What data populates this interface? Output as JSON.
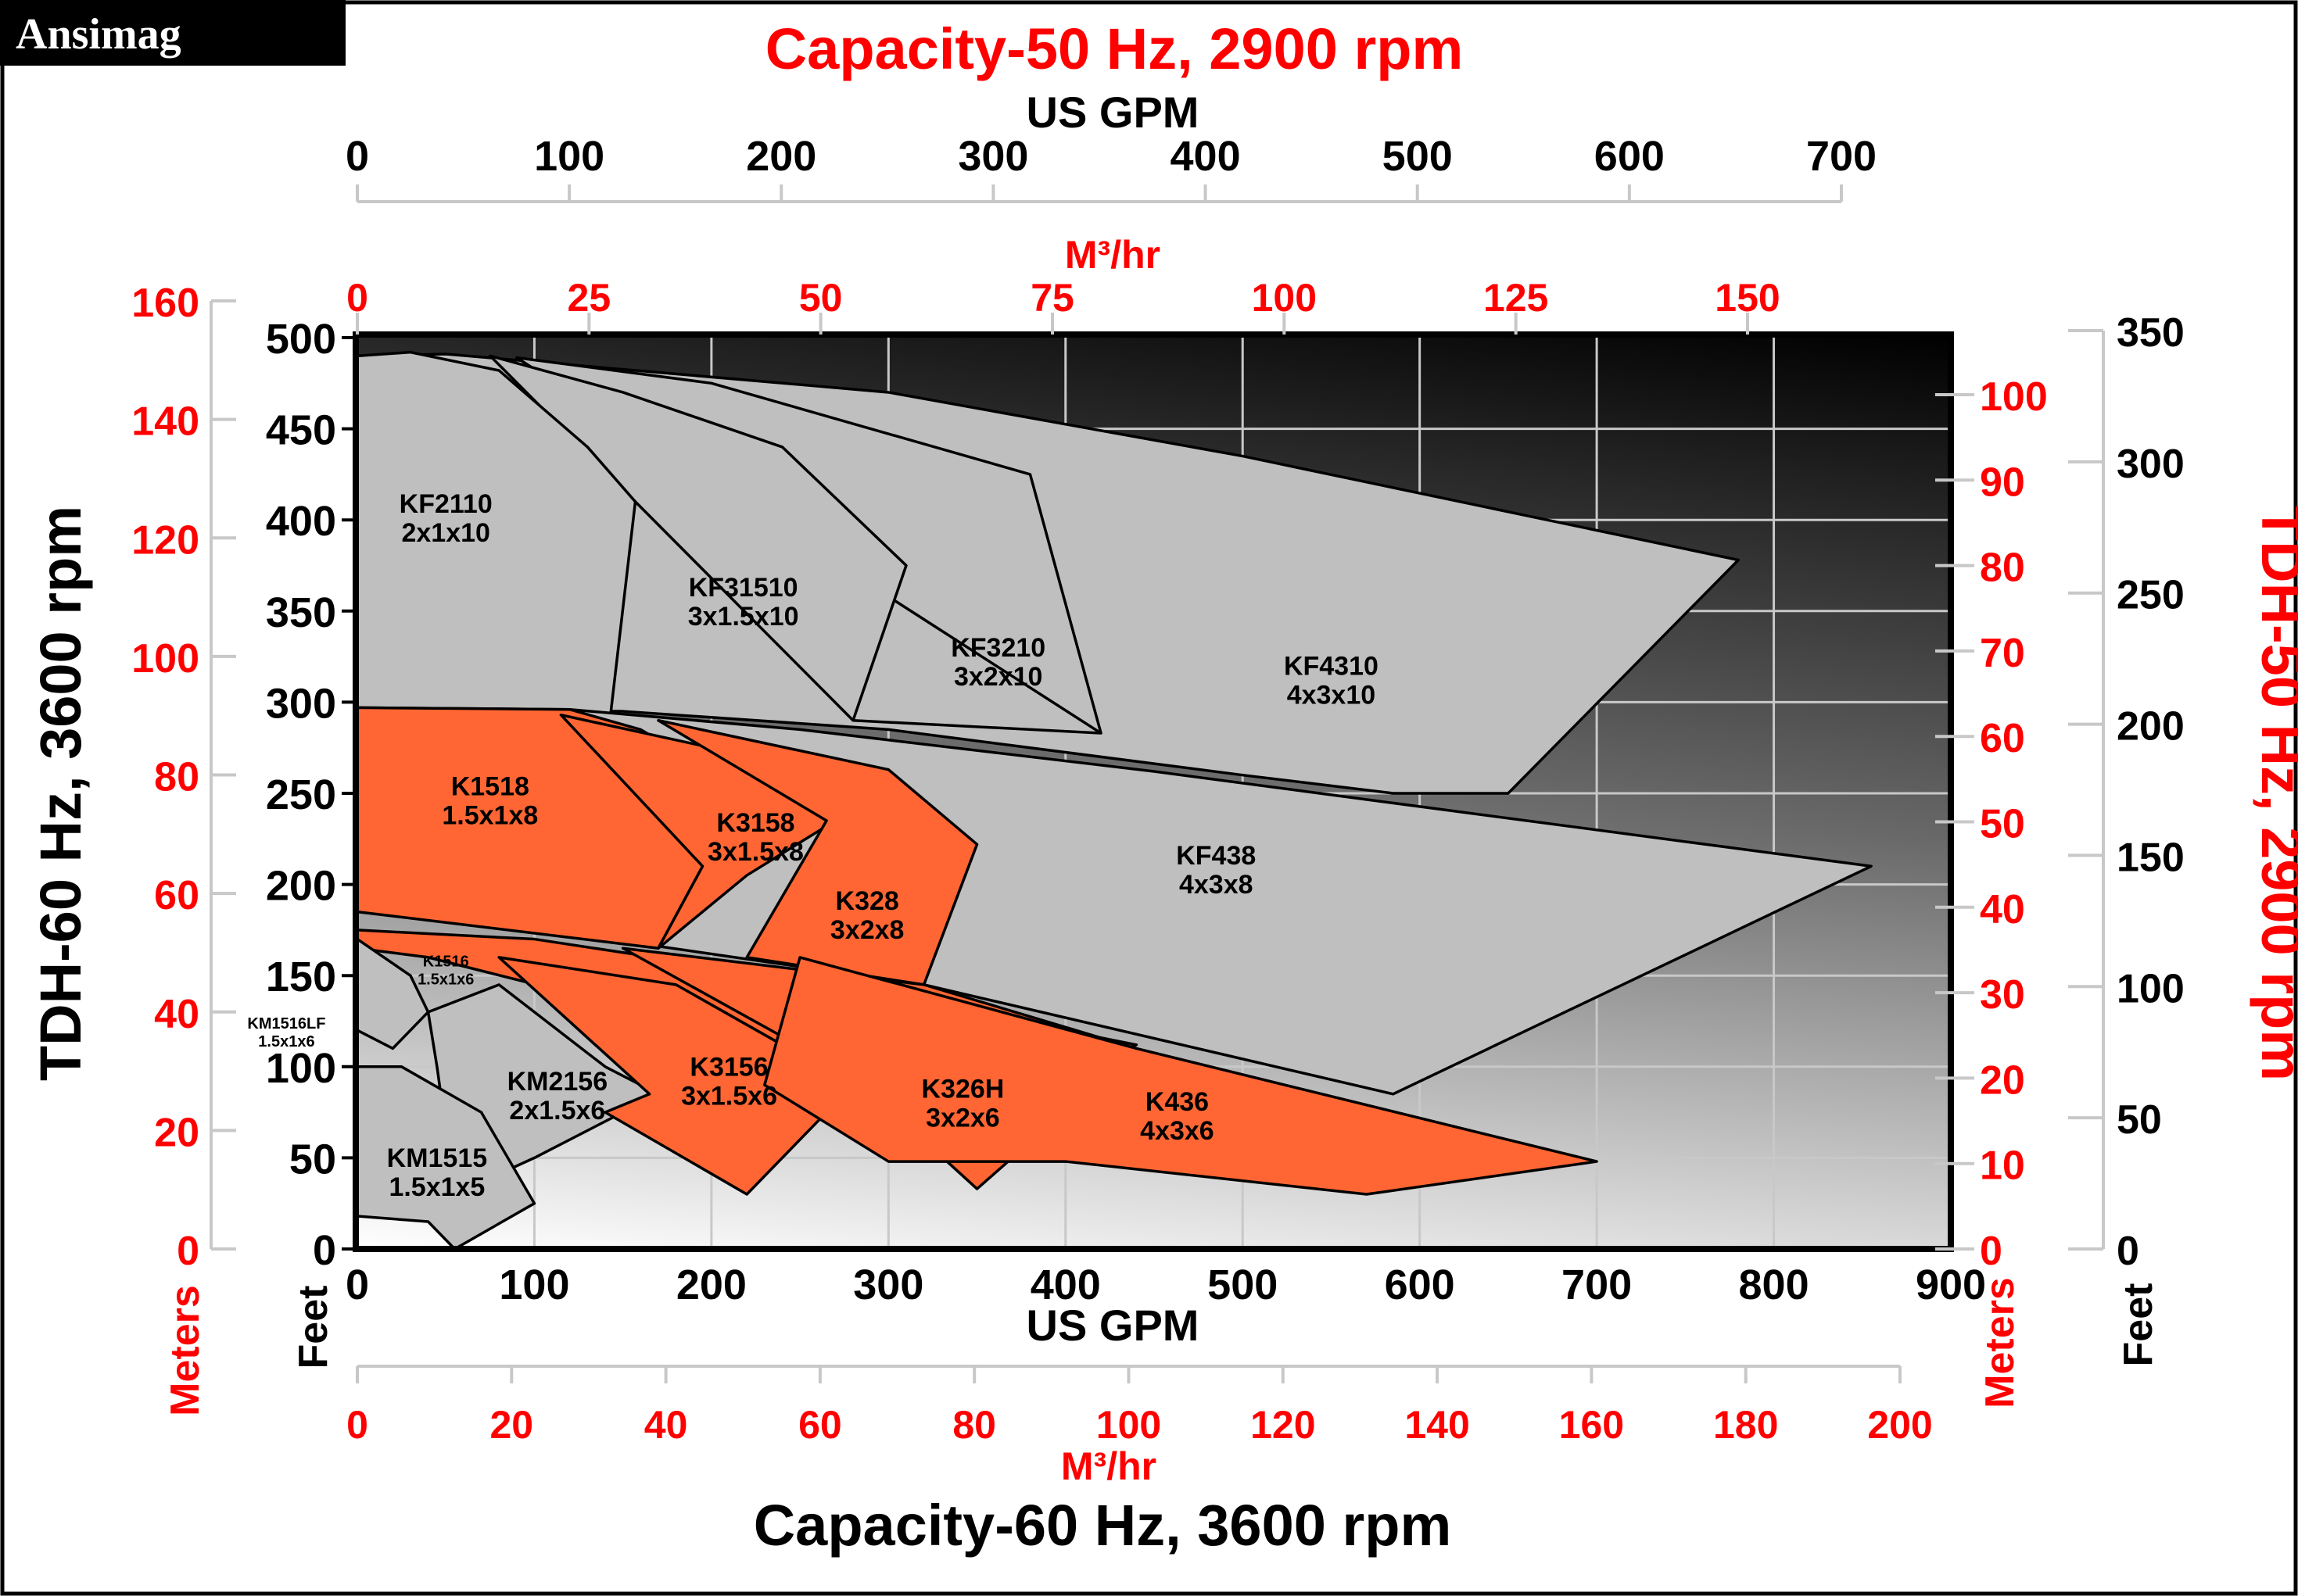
{
  "brand": "Ansimag",
  "colors": {
    "red": "#ff0000",
    "black": "#000000",
    "gray_region": "#bfbfbf",
    "orange_region": "#ff6633",
    "grid": "#c8c8c8"
  },
  "chart_data": {
    "type": "area",
    "description_type": "pump performance coverage chart",
    "grid": true,
    "top_title": "Capacity-50 Hz, 2900 rpm",
    "top_axis_gpm": {
      "label": "US GPM",
      "ticks": [
        "0",
        "100",
        "200",
        "300",
        "400",
        "500",
        "600",
        "700"
      ],
      "range": [
        0,
        700
      ]
    },
    "top_axis_m3": {
      "label": "M³/hr",
      "ticks": [
        "0",
        "25",
        "50",
        "75",
        "100",
        "125",
        "150"
      ],
      "range": [
        0,
        150
      ]
    },
    "bottom_axis_gpm": {
      "label": "US GPM",
      "ticks": [
        "0",
        "100",
        "200",
        "300",
        "400",
        "500",
        "600",
        "700",
        "800",
        "900"
      ],
      "range": [
        0,
        900
      ]
    },
    "bottom_axis_m3": {
      "label": "M³/hr",
      "ticks": [
        "0",
        "20",
        "40",
        "60",
        "80",
        "100",
        "120",
        "140",
        "160",
        "180",
        "200"
      ],
      "range": [
        0,
        200
      ]
    },
    "bottom_title": "Capacity-60 Hz, 3600 rpm",
    "left_title": "TDH-60 Hz, 3600 rpm",
    "left_axis_feet": {
      "label": "Feet",
      "ticks": [
        "0",
        "50",
        "100",
        "150",
        "200",
        "250",
        "300",
        "350",
        "400",
        "450",
        "500"
      ],
      "range": [
        0,
        500
      ]
    },
    "left_axis_meters": {
      "label": "Meters",
      "ticks": [
        "0",
        "20",
        "40",
        "60",
        "80",
        "100",
        "120",
        "140",
        "160"
      ],
      "range": [
        0,
        160
      ]
    },
    "right_title": "TDH-50 Hz, 2900 rpm",
    "right_axis_meters": {
      "label": "Meters",
      "ticks": [
        "0",
        "10",
        "20",
        "30",
        "40",
        "50",
        "60",
        "70",
        "80",
        "90",
        "100"
      ],
      "range": [
        0,
        100
      ]
    },
    "right_axis_feet": {
      "label": "Feet",
      "ticks": [
        "0",
        "50",
        "100",
        "150",
        "200",
        "250",
        "300",
        "350"
      ],
      "range": [
        0,
        350
      ]
    },
    "series": [
      {
        "name": "KF4310",
        "size": "4x3x10",
        "color": "gray",
        "label_at": [
          550,
          315
        ],
        "outline": [
          [
            0,
            480
          ],
          [
            5,
            490
          ],
          [
            50,
            491
          ],
          [
            300,
            470
          ],
          [
            500,
            435
          ],
          [
            780,
            378
          ],
          [
            650,
            250
          ],
          [
            585,
            250
          ],
          [
            500,
            260
          ],
          [
            300,
            285
          ],
          [
            150,
            295
          ],
          [
            0,
            296
          ]
        ]
      },
      {
        "name": "KF3210",
        "size": "3x2x10",
        "color": "gray",
        "label_at": [
          362,
          325
        ],
        "outline": [
          [
            90,
            489
          ],
          [
            200,
            475
          ],
          [
            380,
            425
          ],
          [
            420,
            283
          ],
          [
            280,
            290
          ],
          [
            420,
            283
          ]
        ]
      },
      {
        "name": "KF31510",
        "size": "3x1.5x10",
        "color": "gray",
        "label_at": [
          218,
          358
        ],
        "outline": [
          [
            75,
            490
          ],
          [
            150,
            470
          ],
          [
            240,
            440
          ],
          [
            310,
            375
          ],
          [
            280,
            290
          ]
        ]
      },
      {
        "name": "KF2110",
        "size": "2x1x10",
        "color": "gray",
        "label_at": [
          50,
          404
        ],
        "outline": [
          [
            0,
            490
          ],
          [
            30,
            492
          ],
          [
            80,
            482
          ],
          [
            130,
            440
          ],
          [
            157,
            410
          ],
          [
            143,
            293
          ],
          [
            0,
            296
          ]
        ]
      },
      {
        "name": "KF438",
        "size": "4x3x8",
        "color": "gray",
        "label_at": [
          485,
          211
        ],
        "outline": [
          [
            0,
            297
          ],
          [
            120,
            296
          ],
          [
            250,
            285
          ],
          [
            450,
            262
          ],
          [
            855,
            210
          ],
          [
            585,
            85
          ],
          [
            320,
            145
          ],
          [
            0,
            190
          ]
        ]
      },
      {
        "name": "K1518",
        "size": "1.5x1x8",
        "color": "orange",
        "label_at": [
          75,
          249
        ],
        "outline": [
          [
            0,
            297
          ],
          [
            120,
            296
          ],
          [
            160,
            285
          ],
          [
            220,
            250
          ],
          [
            270,
            235
          ],
          [
            195,
            210
          ],
          [
            170,
            165
          ],
          [
            0,
            185
          ]
        ]
      },
      {
        "name": "K3158",
        "size": "3x1.5x8",
        "color": "orange",
        "label_at": [
          225,
          229
        ],
        "outline": [
          [
            115,
            293
          ],
          [
            200,
            275
          ],
          [
            270,
            235
          ],
          [
            220,
            205
          ],
          [
            170,
            165
          ],
          [
            195,
            210
          ]
        ]
      },
      {
        "name": "K328",
        "size": "3x2x8",
        "color": "orange",
        "label_at": [
          288,
          186
        ],
        "outline": [
          [
            170,
            290
          ],
          [
            300,
            263
          ],
          [
            350,
            222
          ],
          [
            320,
            145
          ],
          [
            220,
            160
          ],
          [
            265,
            235
          ]
        ]
      },
      {
        "name": "K1516",
        "size": "1.5x1x6",
        "color": "orange",
        "label_at": [
          50,
          155
        ],
        "outline": [
          [
            0,
            175
          ],
          [
            100,
            170
          ],
          [
            270,
            145
          ],
          [
            440,
            112
          ],
          [
            350,
            75
          ],
          [
            190,
            110
          ],
          [
            130,
            138
          ],
          [
            40,
            160
          ],
          [
            0,
            165
          ]
        ]
      },
      {
        "name": "KM1516LF",
        "size": "1.5x1x6",
        "color": "gray",
        "label_at": [
          -40,
          121
        ],
        "outline": [
          [
            0,
            170
          ],
          [
            30,
            150
          ],
          [
            40,
            130
          ],
          [
            20,
            110
          ],
          [
            0,
            120
          ]
        ]
      },
      {
        "name": "KM2156",
        "size": "2x1.5x6",
        "color": "gray",
        "label_at": [
          113,
          87
        ],
        "outline": [
          [
            40,
            130
          ],
          [
            80,
            145
          ],
          [
            140,
            100
          ],
          [
            170,
            85
          ],
          [
            100,
            50
          ],
          [
            55,
            30
          ],
          [
            45,
            100
          ]
        ]
      },
      {
        "name": "K3156",
        "size": "3x1.5x6",
        "color": "orange",
        "label_at": [
          210,
          95
        ],
        "outline": [
          [
            80,
            160
          ],
          [
            180,
            145
          ],
          [
            280,
            90
          ],
          [
            220,
            30
          ],
          [
            140,
            75
          ],
          [
            165,
            85
          ]
        ]
      },
      {
        "name": "K326H",
        "size": "3x2x6",
        "color": "orange",
        "label_at": [
          342,
          83
        ],
        "outline": [
          [
            150,
            165
          ],
          [
            320,
            145
          ],
          [
            440,
            110
          ],
          [
            350,
            33
          ],
          [
            280,
            95
          ]
        ]
      },
      {
        "name": "K436",
        "size": "4x3x6",
        "color": "orange",
        "label_at": [
          463,
          76
        ],
        "outline": [
          [
            250,
            160
          ],
          [
            440,
            110
          ],
          [
            700,
            48
          ],
          [
            570,
            30
          ],
          [
            400,
            48
          ],
          [
            300,
            48
          ],
          [
            230,
            90
          ]
        ]
      },
      {
        "name": "KM1515",
        "size": "1.5x1x5",
        "color": "gray",
        "label_at": [
          45,
          45
        ],
        "outline": [
          [
            0,
            100
          ],
          [
            25,
            100
          ],
          [
            70,
            75
          ],
          [
            100,
            25
          ],
          [
            55,
            0
          ],
          [
            40,
            15
          ],
          [
            0,
            18
          ]
        ]
      }
    ]
  }
}
